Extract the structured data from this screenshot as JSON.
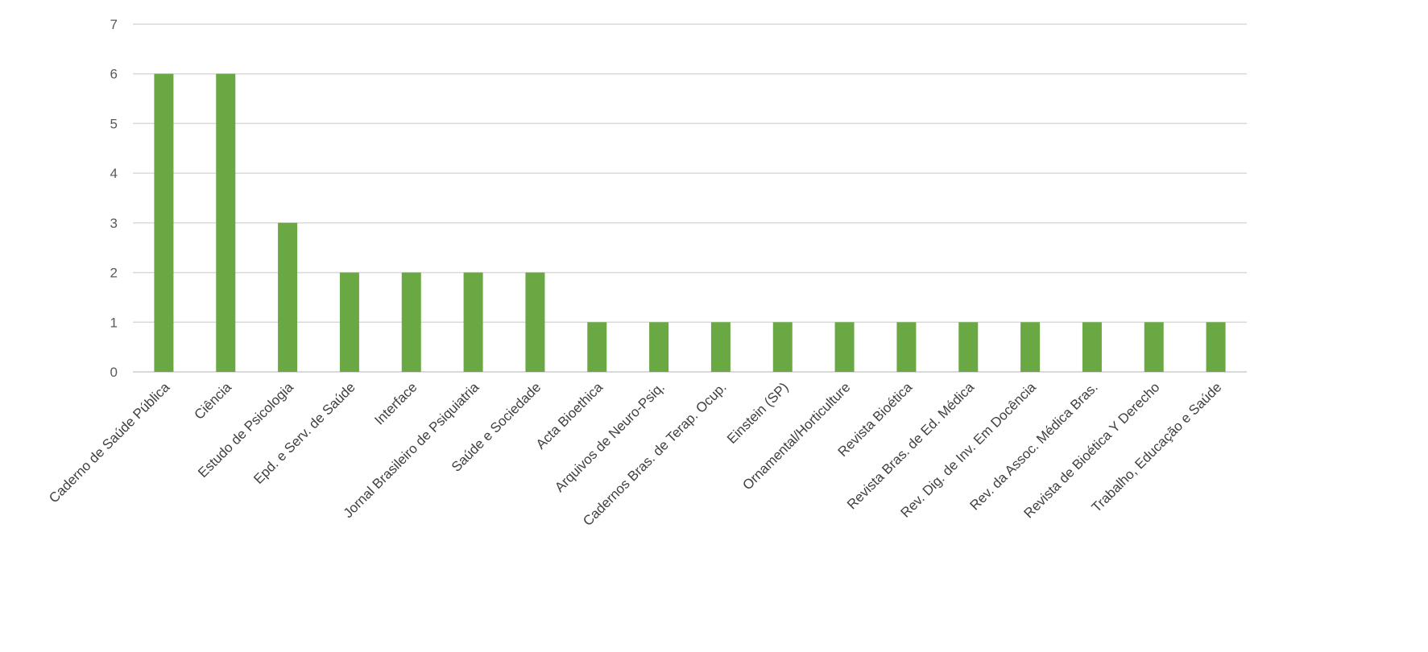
{
  "chart_data": {
    "type": "bar",
    "title": "",
    "xlabel": "",
    "ylabel": "",
    "ylim": [
      0,
      7
    ],
    "yticks": [
      0,
      1,
      2,
      3,
      4,
      5,
      6,
      7
    ],
    "grid": true,
    "legend": "none",
    "bar_color": "#6aa844",
    "grid_color": "#d9d9d9",
    "categories": [
      "Caderno de Saúde Pública",
      "Ciência",
      "Estudo de Psicologia",
      "Epd. e Serv. de Saúde",
      "Interface",
      "Jornal Brasileiro de Psiquiatria",
      "Saúde e Sociedade",
      "Acta Bioethica",
      "Arquivos de Neuro-Psiq.",
      "Cadernos Bras. de Terap. Ocup.",
      "Einstein (SP)",
      "Ornamental/Horticulture",
      "Revista Bioética",
      "Revista Bras. de Ed. Médica",
      "Rev.  Dig. de Inv. Em Docência",
      "Rev. da Assoc. Médica Bras.",
      "Revista de Bioética Y Derecho",
      "Trabalho, Educação e Saúde"
    ],
    "values": [
      6,
      6,
      3,
      2,
      2,
      2,
      2,
      1,
      1,
      1,
      1,
      1,
      1,
      1,
      1,
      1,
      1,
      1
    ]
  }
}
